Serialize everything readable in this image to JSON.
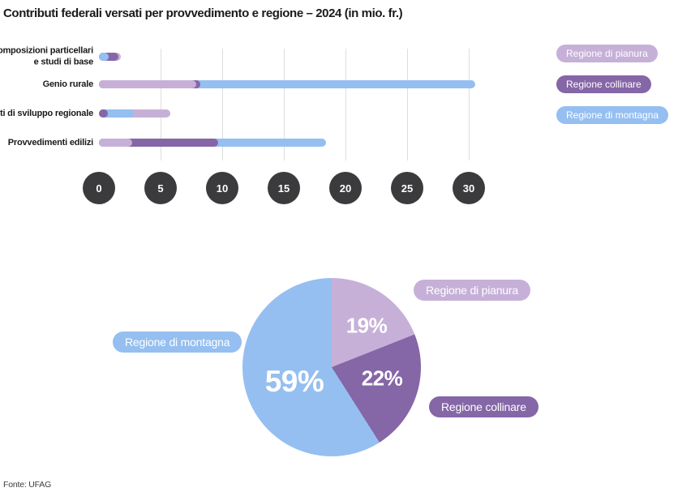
{
  "title": "Contributi federali versati per provvedimento e regione – 2024 (in mio. fr.)",
  "source": "Fonte: UFAG",
  "colors": {
    "pianura": "#C6B0D8",
    "collinare": "#8566A7",
    "montagna": "#95BFF0",
    "tick_circle": "#3B3B3D",
    "tick_text": "#FFFFFF",
    "gridline": "#DDDDDD",
    "text": "#1A1A1A"
  },
  "regions": [
    {
      "id": "pianura",
      "label": "Regione di pianura"
    },
    {
      "id": "collinare",
      "label": "Regione collinare"
    },
    {
      "id": "montagna",
      "label": "Regione di montagna"
    }
  ],
  "legend": {
    "position": "top-right",
    "items": [
      "Regione di pianura",
      "Regione collinare",
      "Regione di montagna"
    ]
  },
  "chart_data": [
    {
      "type": "bar",
      "orientation": "horizontal",
      "style": "overlapping-rounded-bars",
      "categories": [
        "Ricomposizioni particellari e studi di base",
        "Genio rurale",
        "Progetti di sviluppo regionale",
        "Provvedimenti edilizi"
      ],
      "category_lines": [
        [
          "Ricomposizioni particellari",
          "e studi di base"
        ],
        [
          "Genio rurale"
        ],
        [
          "Progetti di sviluppo regionale"
        ],
        [
          "Provvedimenti edilizi"
        ]
      ],
      "series": [
        {
          "region": "pianura",
          "name": "Regione di pianura",
          "values": [
            1.8,
            7.9,
            5.8,
            2.7
          ]
        },
        {
          "region": "collinare",
          "name": "Regione collinare",
          "values": [
            1.6,
            8.2,
            0.7,
            9.7
          ]
        },
        {
          "region": "montagna",
          "name": "Regione di montagna",
          "values": [
            0.8,
            30.5,
            2.8,
            18.4
          ]
        }
      ],
      "x_ticks": [
        0,
        5,
        10,
        15,
        20,
        25,
        30
      ],
      "xlim": [
        0,
        30
      ],
      "grid": "vertical",
      "unit": "mio. fr."
    },
    {
      "type": "pie",
      "start_angle_deg": 0,
      "direction": "clockwise",
      "slices": [
        {
          "region": "pianura",
          "label": "Regione di pianura",
          "value_pct": 19,
          "display": "19%"
        },
        {
          "region": "collinare",
          "label": "Regione collinare",
          "value_pct": 22,
          "display": "22%"
        },
        {
          "region": "montagna",
          "label": "Regione di montagna",
          "value_pct": 59,
          "display": "59%"
        }
      ]
    }
  ]
}
